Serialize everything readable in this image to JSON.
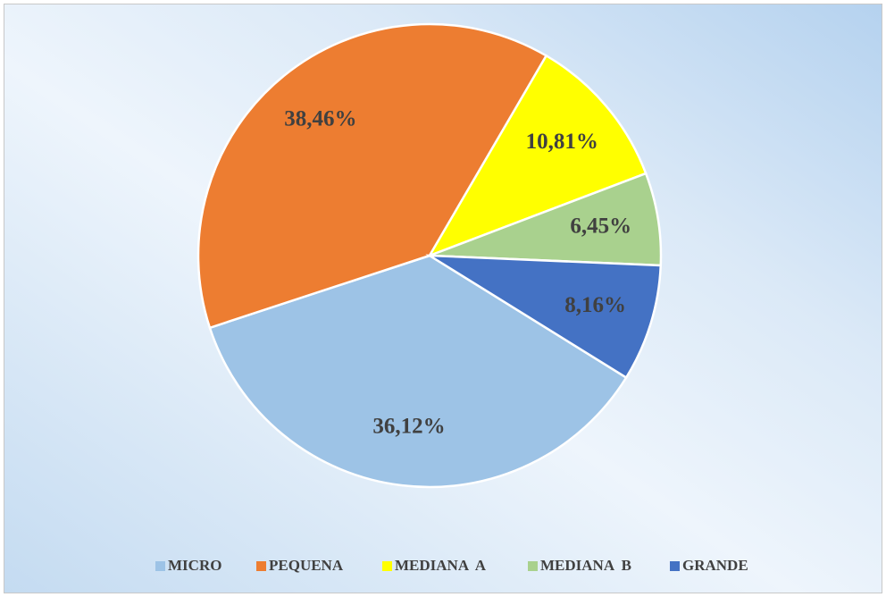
{
  "chart_data": {
    "type": "pie",
    "categories": [
      "MICRO",
      "PEQUENA",
      "MEDIANA  A",
      "MEDIANA  B",
      "GRANDE"
    ],
    "values": [
      36.12,
      38.46,
      10.81,
      6.45,
      8.16
    ],
    "value_labels": [
      "36,12%",
      "38,46%",
      "10,81%",
      "6,45%",
      "8,16%"
    ],
    "colors": [
      "#9dc3e6",
      "#ed7d31",
      "#ffff00",
      "#a9d18e",
      "#4472c4"
    ],
    "legend": "bottom"
  }
}
